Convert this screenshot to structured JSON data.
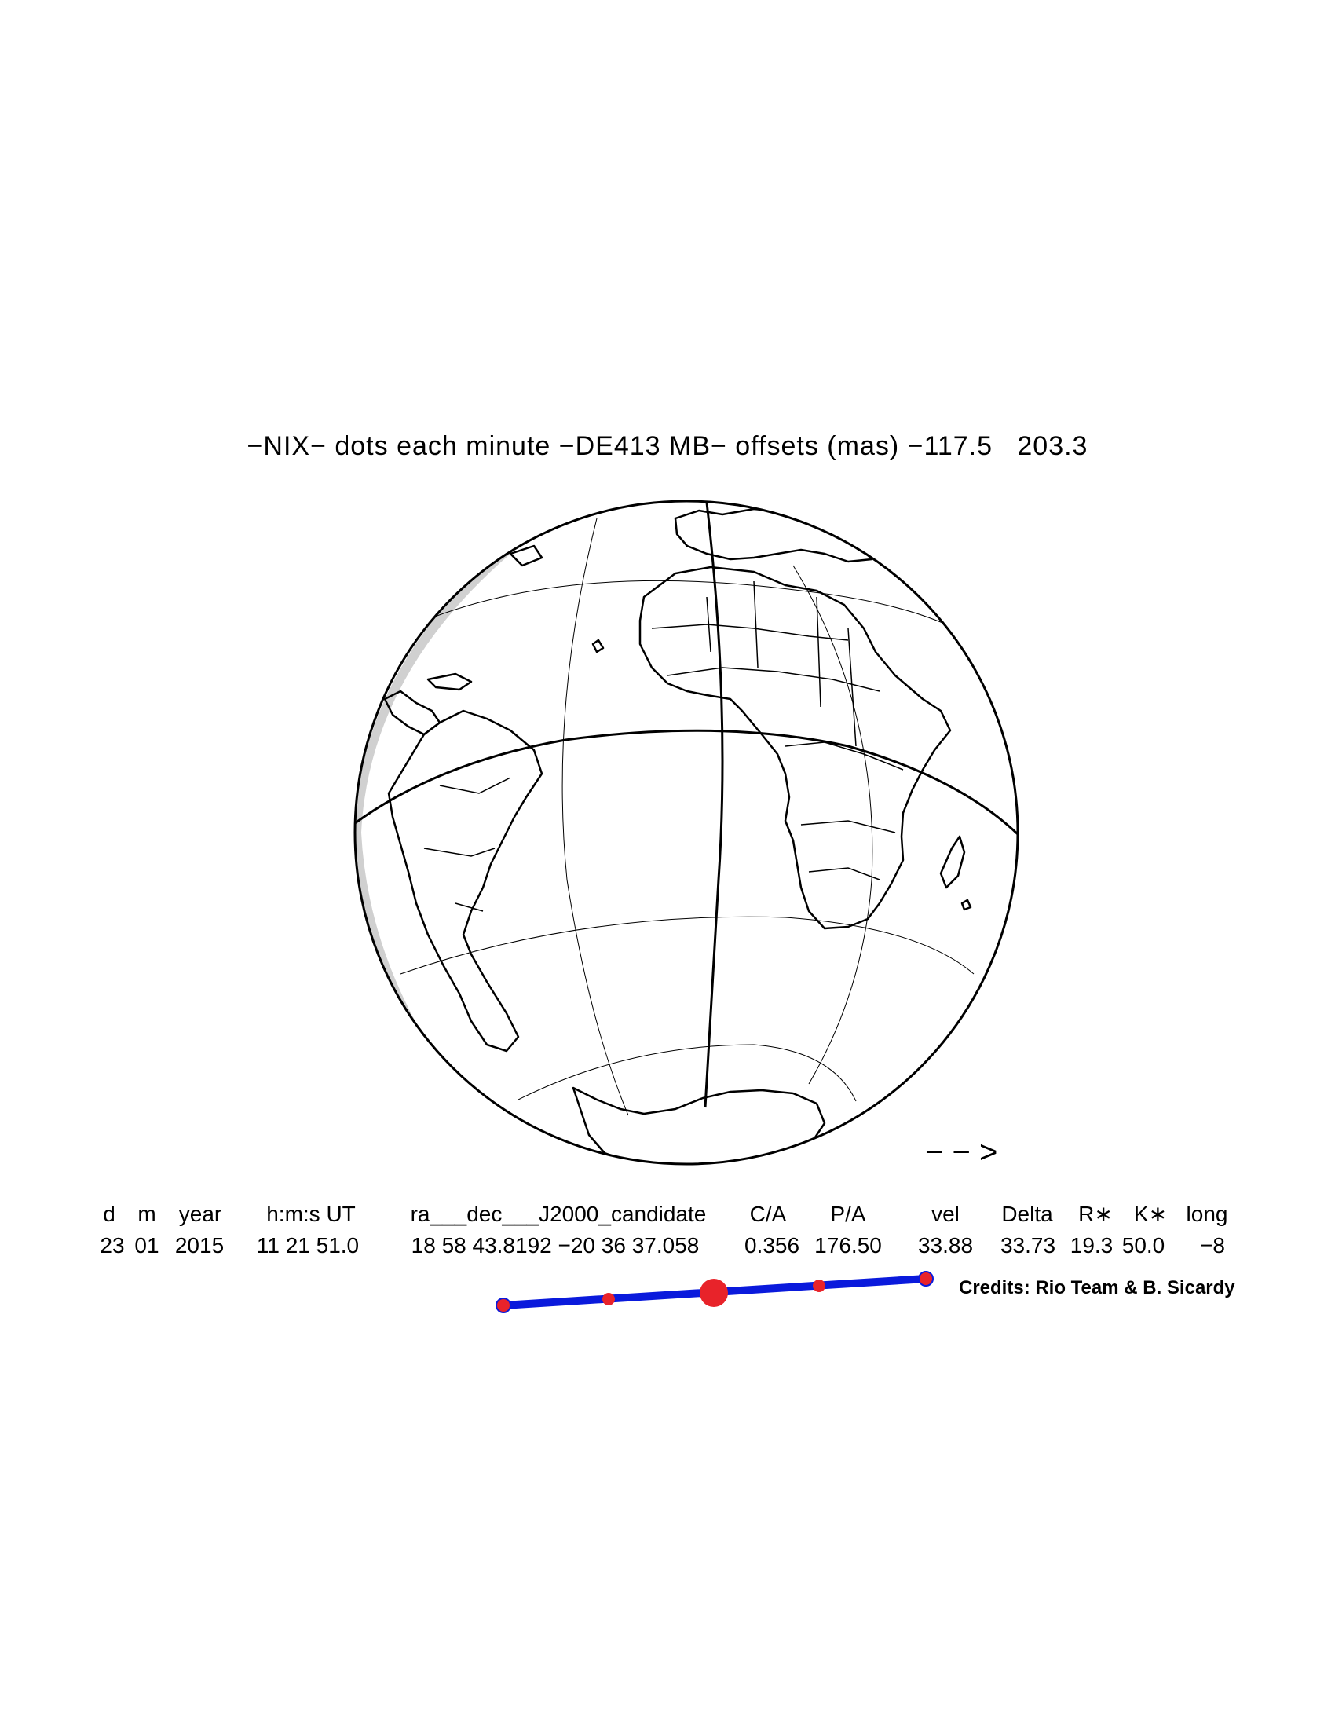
{
  "title": "−NIX− dots each minute −DE413 MB− offsets (mas) −117.5   203.3",
  "direction_arrow": "− − >",
  "table": {
    "headers": [
      "d",
      "m",
      "year",
      "h:m:s UT",
      "ra___dec___J2000_candidate",
      "C/A",
      "P/A",
      "vel",
      "Delta",
      "R∗",
      "K∗",
      "long"
    ],
    "values": [
      "23",
      "01",
      "2015",
      "11 21 51.0",
      "18 58 43.8192 −20 36 37.058",
      "0.356",
      "176.50",
      "33.88",
      "33.73",
      "19.3",
      "50.0",
      "−8"
    ]
  },
  "credits": "Credits: Rio Team & B. Sicardy",
  "colors": {
    "track": "#0a1adc",
    "dots": "#e8232a",
    "outline": "#000000",
    "shade": "#d0d0d0"
  }
}
